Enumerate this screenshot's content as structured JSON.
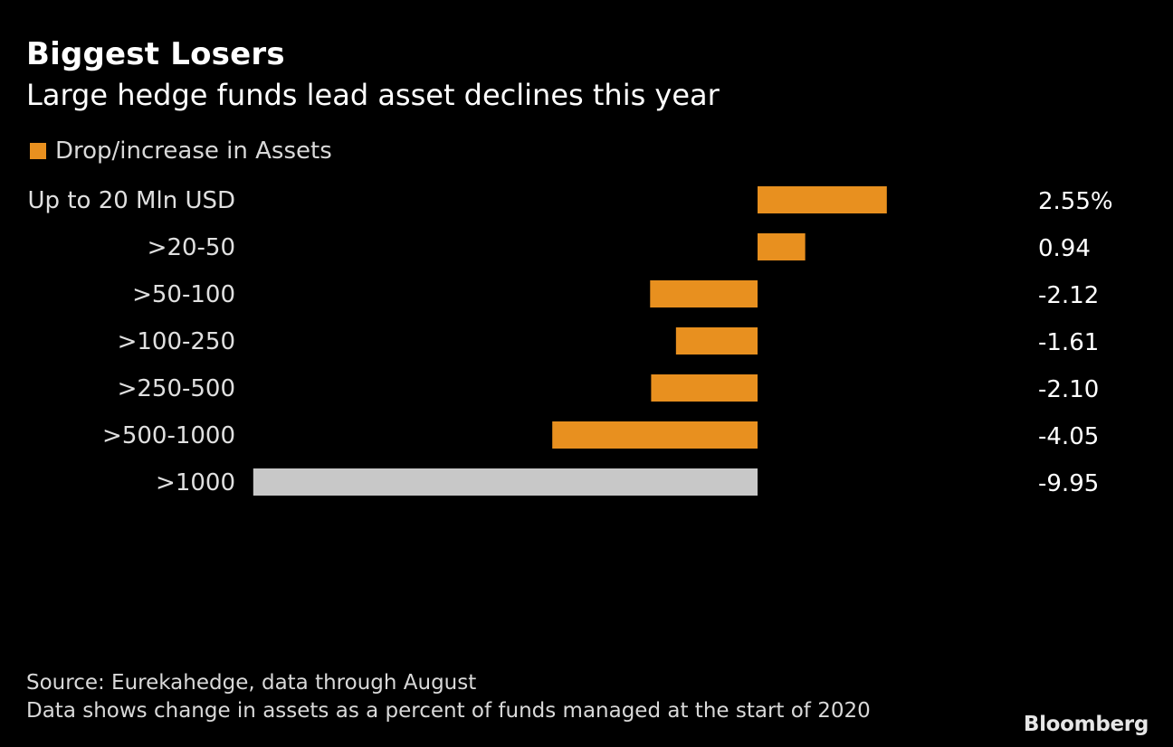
{
  "title": "Biggest Losers",
  "subtitle": "Large hedge funds lead asset declines this year",
  "legend": {
    "label": "Drop/increase in Assets",
    "color": "#e8901f"
  },
  "footer": {
    "source": "Source: Eurekahedge, data through August",
    "note": "Data shows change in assets as a percent of funds managed at the start of 2020"
  },
  "brand": "Bloomberg",
  "colors": {
    "positive_negative": "#e8901f",
    "highlight": "#c8c8c8",
    "background": "#000000",
    "text": "#e0e0e0"
  },
  "chart_data": {
    "type": "bar",
    "orientation": "horizontal",
    "categories": [
      "Up to 20 Mln USD",
      ">20-50",
      ">50-100",
      ">100-250",
      ">250-500",
      ">500-1000",
      ">1000"
    ],
    "values": [
      2.55,
      0.94,
      -2.12,
      -1.61,
      -2.1,
      -4.05,
      -9.95
    ],
    "value_labels": [
      "2.55%",
      "0.94",
      "-2.12",
      "-1.61",
      "-2.10",
      "-4.05",
      "-9.95"
    ],
    "highlighted_category": ">1000",
    "xlim": [
      -9.95,
      2.55
    ],
    "grid": false,
    "legend_position": "top-left"
  }
}
